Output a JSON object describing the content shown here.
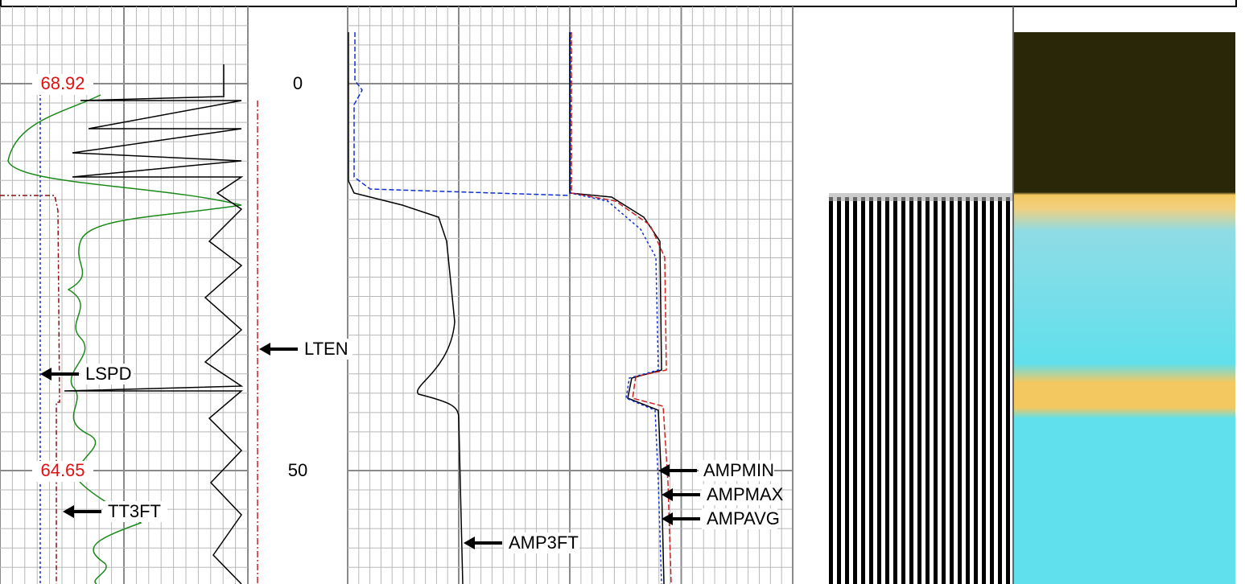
{
  "scale_labels": {
    "top": "68.92",
    "bottom": "64.65"
  },
  "depth_labels": [
    "0",
    "50"
  ],
  "curve_labels": {
    "lten": "LTEN",
    "lspd": "LSPD",
    "tt3ft": "TT3FT",
    "amp3ft": "AMP3FT",
    "ampmin": "AMPMIN",
    "ampmax": "AMPMAX",
    "ampavg": "AMPAVG"
  }
}
